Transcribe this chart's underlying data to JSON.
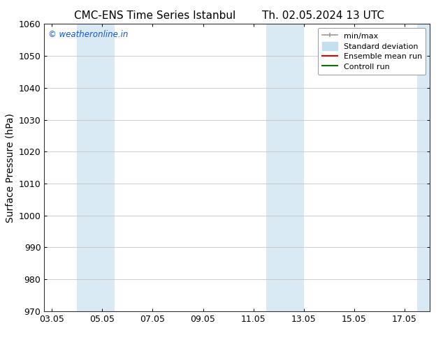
{
  "title_left": "CMC-ENS Time Series Istanbul",
  "title_right": "Th. 02.05.2024 13 UTC",
  "ylabel": "Surface Pressure (hPa)",
  "ylim": [
    970,
    1060
  ],
  "yticks": [
    970,
    980,
    990,
    1000,
    1010,
    1020,
    1030,
    1040,
    1050,
    1060
  ],
  "xlabel_ticks": [
    "03.05",
    "05.05",
    "07.05",
    "09.05",
    "11.05",
    "13.05",
    "15.05",
    "17.05"
  ],
  "x_tick_positions": [
    0,
    2,
    4,
    6,
    8,
    10,
    12,
    14
  ],
  "x_min": -0.3,
  "x_max": 15.0,
  "shaded_regions": [
    {
      "x_start": 1.0,
      "x_end": 2.5,
      "color": "#daeaf5"
    },
    {
      "x_start": 8.5,
      "x_end": 10.0,
      "color": "#daeaf5"
    },
    {
      "x_start": 14.5,
      "x_end": 15.0,
      "color": "#daeaf5"
    }
  ],
  "watermark_text": "© weatheronline.in",
  "watermark_color": "#1155cc",
  "legend_items": [
    {
      "label": "min/max",
      "color": "#aaaaaa",
      "lw": 1.2
    },
    {
      "label": "Standard deviation",
      "color": "#c5def0",
      "lw": 8
    },
    {
      "label": "Ensemble mean run",
      "color": "#dd0000",
      "lw": 1.5
    },
    {
      "label": "Controll run",
      "color": "#007700",
      "lw": 1.5
    }
  ],
  "background_color": "#ffffff",
  "plot_background": "#ffffff",
  "grid_color": "#bbbbbb",
  "title_fontsize": 11,
  "axis_label_fontsize": 10,
  "tick_fontsize": 9,
  "legend_fontsize": 8
}
